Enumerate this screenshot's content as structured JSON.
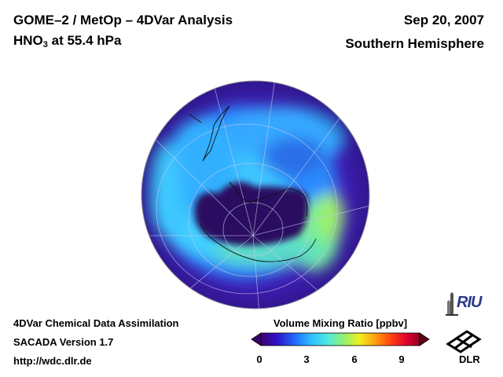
{
  "header": {
    "title": "GOME–2 / MetOp – 4DVar Analysis",
    "species_main": "HNO",
    "species_sub": "3",
    "species_rest": " at 55.4 hPa",
    "date": "Sep 20, 2007",
    "region": "Southern Hemisphere"
  },
  "footer": {
    "line1": "4DVar Chemical Data Assimilation",
    "line2": "SACADA Version 1.7",
    "line3": "http://wdc.dlr.de"
  },
  "colorbar": {
    "title": "Volume Mixing Ratio [ppbv]",
    "ticks": [
      "0",
      "3",
      "6",
      "9"
    ],
    "min": 0,
    "max": 10
  },
  "logos": {
    "riu": "RIU",
    "dlr": "DLR"
  },
  "map": {
    "projection": "orthographic",
    "center": "South Pole",
    "colors": {
      "background": "#3c1cb0",
      "low": "#2a0860",
      "mid": "#38c8ff",
      "high": "#a8f060"
    }
  }
}
